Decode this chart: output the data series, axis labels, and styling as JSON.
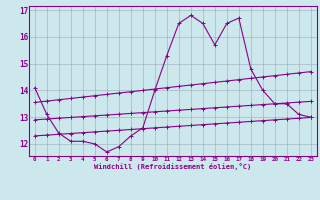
{
  "xlabel": "Windchill (Refroidissement éolien,°C)",
  "bg_color": "#cce8ec",
  "line_color": "#880088",
  "grid_color": "#99aabb",
  "x_hours": [
    0,
    1,
    2,
    3,
    4,
    5,
    6,
    7,
    8,
    9,
    10,
    11,
    12,
    13,
    14,
    15,
    16,
    17,
    18,
    19,
    20,
    21,
    22,
    23
  ],
  "windchill": [
    14.1,
    13.1,
    12.4,
    12.1,
    12.1,
    12.0,
    11.7,
    11.9,
    12.3,
    12.6,
    14.0,
    15.3,
    16.5,
    16.8,
    16.5,
    15.7,
    16.5,
    16.7,
    14.8,
    14.0,
    13.5,
    13.5,
    13.1,
    13.0
  ],
  "trend_upper": [
    13.55,
    13.6,
    13.65,
    13.7,
    13.75,
    13.8,
    13.85,
    13.9,
    13.95,
    14.0,
    14.05,
    14.1,
    14.15,
    14.2,
    14.25,
    14.3,
    14.35,
    14.4,
    14.45,
    14.5,
    14.55,
    14.6,
    14.65,
    14.7
  ],
  "trend_mid": [
    12.9,
    12.93,
    12.96,
    12.99,
    13.02,
    13.05,
    13.08,
    13.11,
    13.14,
    13.17,
    13.2,
    13.23,
    13.26,
    13.29,
    13.32,
    13.35,
    13.38,
    13.41,
    13.44,
    13.47,
    13.5,
    13.53,
    13.56,
    13.59
  ],
  "trend_lower": [
    12.3,
    12.33,
    12.36,
    12.39,
    12.42,
    12.45,
    12.48,
    12.51,
    12.54,
    12.57,
    12.6,
    12.63,
    12.66,
    12.69,
    12.72,
    12.75,
    12.78,
    12.81,
    12.84,
    12.87,
    12.9,
    12.93,
    12.96,
    12.99
  ],
  "ylim": [
    11.55,
    17.15
  ],
  "yticks": [
    12,
    13,
    14,
    15,
    16,
    17
  ],
  "xticks": [
    0,
    1,
    2,
    3,
    4,
    5,
    6,
    7,
    8,
    9,
    10,
    11,
    12,
    13,
    14,
    15,
    16,
    17,
    18,
    19,
    20,
    21,
    22,
    23
  ]
}
